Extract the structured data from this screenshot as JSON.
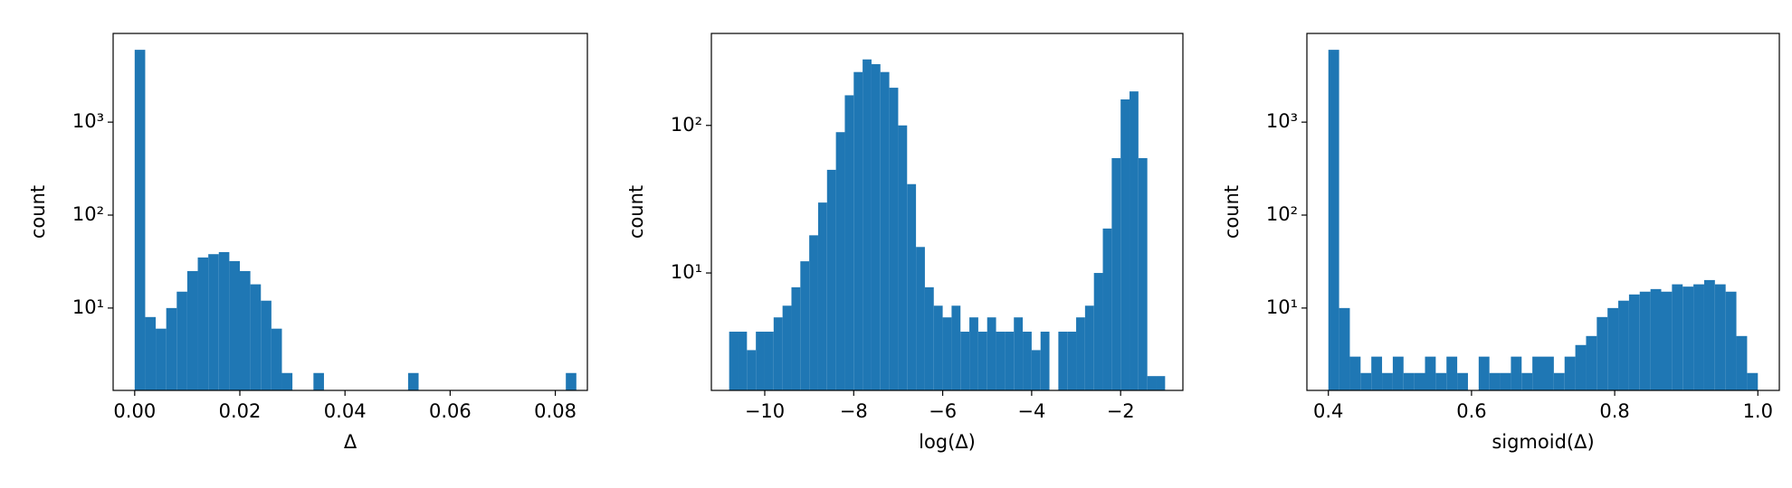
{
  "chart_data": [
    {
      "type": "histogram",
      "log_y": true,
      "color": "#1f77b4",
      "xlabel": "Δ",
      "ylabel": "count",
      "bins": [
        0,
        0.002,
        0.004,
        0.006,
        0.008,
        0.01,
        0.012,
        0.014,
        0.016,
        0.018,
        0.02,
        0.022,
        0.024,
        0.026,
        0.028,
        0.03,
        0.032,
        0.034,
        0.036,
        0.038,
        0.04,
        0.042,
        0.044,
        0.046,
        0.048,
        0.05,
        0.052,
        0.054,
        0.056,
        0.058,
        0.06,
        0.062,
        0.064,
        0.066,
        0.068,
        0.07,
        0.072,
        0.074,
        0.076,
        0.078,
        0.08,
        0.082,
        0.084
      ],
      "values": [
        6000,
        8,
        6,
        10,
        15,
        25,
        35,
        38,
        40,
        32,
        25,
        18,
        12,
        6,
        2,
        0,
        0,
        2,
        0,
        0,
        0,
        0,
        0,
        0,
        0,
        0,
        2,
        0,
        0,
        0,
        0,
        0,
        0,
        0,
        0,
        0,
        0,
        0,
        0,
        0,
        0,
        2
      ],
      "xlim": [
        -0.0041,
        0.0861
      ],
      "xticks": [
        {
          "value": 0,
          "label": "0.00"
        },
        0.02,
        0.04,
        0.06,
        0.08
      ],
      "ylim": [
        1.3,
        9000
      ],
      "yticks": [
        {
          "value": 10,
          "label": "10¹"
        },
        {
          "value": 100,
          "label": "10²"
        },
        {
          "value": 1000,
          "label": "10³"
        }
      ]
    },
    {
      "type": "histogram",
      "log_y": true,
      "color": "#1f77b4",
      "xlabel": "log(Δ)",
      "ylabel": "count",
      "bins": [
        -10.8,
        -10.6,
        -10.4,
        -10.2,
        -10.0,
        -9.8,
        -9.6,
        -9.4,
        -9.2,
        -9.0,
        -8.8,
        -8.6,
        -8.4,
        -8.2,
        -8.0,
        -7.8,
        -7.6,
        -7.4,
        -7.2,
        -7.0,
        -6.8,
        -6.6,
        -6.4,
        -6.2,
        -6.0,
        -5.8,
        -5.6,
        -5.4,
        -5.2,
        -5.0,
        -4.8,
        -4.6,
        -4.4,
        -4.2,
        -4.0,
        -3.8,
        -3.6,
        -3.4,
        -3.2,
        -3.0,
        -2.8,
        -2.6,
        -2.4,
        -2.2,
        -2.0,
        -1.8,
        -1.6,
        -1.4,
        -1.2,
        -1.0
      ],
      "values": [
        4,
        4,
        3,
        4,
        4,
        5,
        6,
        8,
        12,
        18,
        30,
        50,
        90,
        160,
        230,
        280,
        260,
        230,
        180,
        100,
        40,
        15,
        8,
        6,
        5,
        6,
        4,
        5,
        4,
        5,
        4,
        4,
        5,
        4,
        3,
        4,
        0,
        4,
        4,
        5,
        6,
        10,
        20,
        60,
        150,
        170,
        60,
        2,
        2
      ],
      "xlim": [
        -11.2,
        -0.6
      ],
      "xticks": [
        {
          "value": -10,
          "label": "−10"
        },
        {
          "value": -8,
          "label": "−8"
        },
        {
          "value": -6,
          "label": "−6"
        },
        {
          "value": -4,
          "label": "−4"
        },
        {
          "value": -2,
          "label": "−2"
        }
      ],
      "ylim": [
        1.6,
        420
      ],
      "yticks": [
        {
          "value": 10,
          "label": "10¹"
        },
        {
          "value": 100,
          "label": "10²"
        }
      ]
    },
    {
      "type": "histogram",
      "log_y": true,
      "color": "#1f77b4",
      "xlabel": "sigmoid(Δ)",
      "ylabel": "count",
      "bins": [
        0.4,
        0.415,
        0.43,
        0.445,
        0.46,
        0.475,
        0.49,
        0.505,
        0.52,
        0.535,
        0.55,
        0.565,
        0.58,
        0.595,
        0.61,
        0.625,
        0.64,
        0.655,
        0.67,
        0.685,
        0.7,
        0.715,
        0.73,
        0.745,
        0.76,
        0.775,
        0.79,
        0.805,
        0.82,
        0.835,
        0.85,
        0.865,
        0.88,
        0.895,
        0.91,
        0.925,
        0.94,
        0.955,
        0.97,
        0.985,
        1.0
      ],
      "values": [
        6000,
        10,
        3,
        2,
        3,
        2,
        3,
        2,
        2,
        3,
        2,
        3,
        2,
        0,
        3,
        2,
        2,
        3,
        2,
        3,
        3,
        2,
        3,
        4,
        5,
        8,
        10,
        12,
        14,
        15,
        16,
        15,
        18,
        17,
        18,
        20,
        18,
        15,
        5,
        2
      ],
      "xlim": [
        0.37,
        1.03
      ],
      "xticks": [
        0.4,
        0.6,
        0.8,
        {
          "value": 1,
          "label": "1.0"
        }
      ],
      "ylim": [
        1.3,
        9000
      ],
      "yticks": [
        {
          "value": 10,
          "label": "10¹"
        },
        {
          "value": 100,
          "label": "10²"
        },
        {
          "value": 1000,
          "label": "10³"
        }
      ]
    }
  ]
}
